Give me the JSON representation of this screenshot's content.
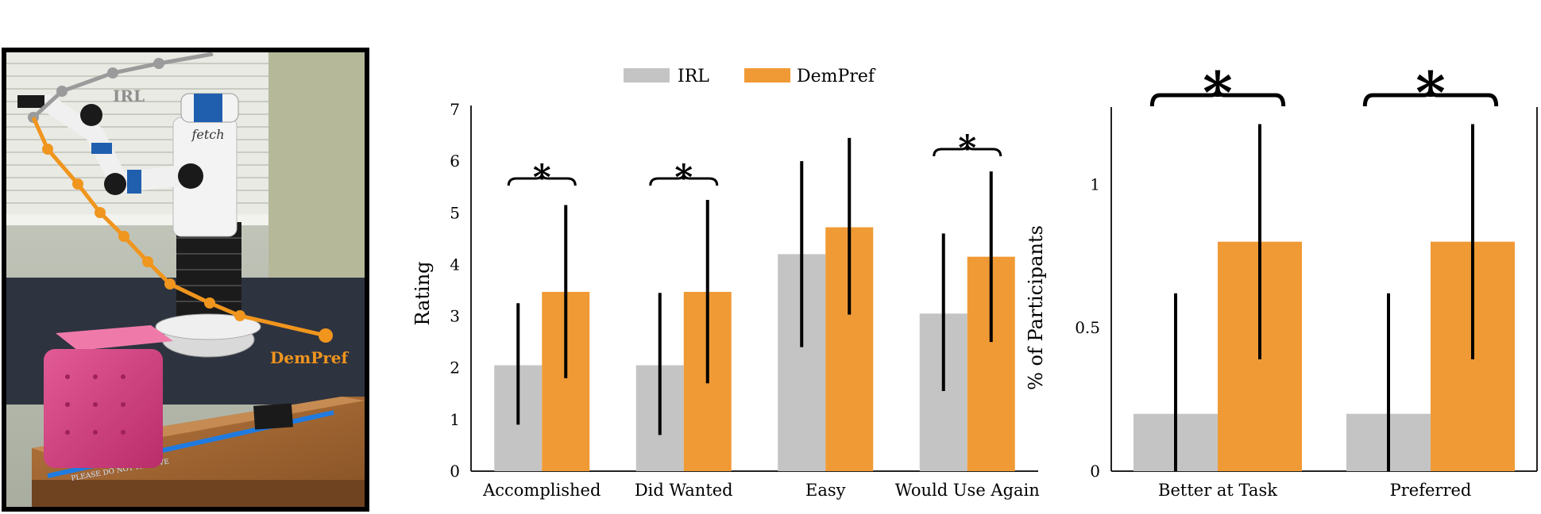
{
  "colors": {
    "irl": "#c4c4c4",
    "dempref": "#f09a35",
    "errorbar": "#000000",
    "axis": "#222222"
  },
  "photo": {
    "description_labels": {
      "irl": "IRL",
      "dempref": "DemPref"
    },
    "robot_logo": "fetch",
    "table_note": "PLEASE DO NOT REMOVE"
  },
  "chart_data": [
    {
      "type": "bar",
      "title": "",
      "xlabel": "",
      "ylabel": "Rating",
      "ylim": [
        0,
        7
      ],
      "yticks": [
        "0",
        "1",
        "2",
        "3",
        "4",
        "5",
        "6",
        "7"
      ],
      "legend": {
        "placement": "top",
        "entries": [
          "IRL",
          "DemPref"
        ]
      },
      "categories": [
        "Accomplished",
        "Did Wanted",
        "Easy",
        "Would Use Again"
      ],
      "series": [
        {
          "name": "IRL",
          "values": [
            2.05,
            2.05,
            4.2,
            3.05
          ],
          "err_low": [
            0.9,
            0.7,
            2.4,
            1.55
          ],
          "err_high": [
            3.25,
            3.45,
            6.0,
            4.6
          ]
        },
        {
          "name": "DemPref",
          "values": [
            3.47,
            3.47,
            4.72,
            4.15
          ],
          "err_low": [
            1.8,
            1.7,
            3.03,
            2.5
          ],
          "err_high": [
            5.15,
            5.25,
            6.45,
            5.8
          ]
        }
      ],
      "significance": [
        "*",
        "*",
        "",
        "*"
      ]
    },
    {
      "type": "bar",
      "title": "",
      "xlabel": "",
      "ylabel": "% of Participants",
      "ylim": [
        0,
        1.25
      ],
      "yticks": [
        "0",
        "0.5",
        "1"
      ],
      "categories": [
        "Better at Task",
        "Preferred"
      ],
      "series": [
        {
          "name": "IRL",
          "values": [
            0.2,
            0.2
          ],
          "err_low": [
            0.0,
            0.0
          ],
          "err_high": [
            0.62,
            0.62
          ]
        },
        {
          "name": "DemPref",
          "values": [
            0.8,
            0.8
          ],
          "err_low": [
            0.39,
            0.39
          ],
          "err_high": [
            1.21,
            1.21
          ]
        }
      ],
      "significance": [
        "*",
        "*"
      ]
    }
  ]
}
